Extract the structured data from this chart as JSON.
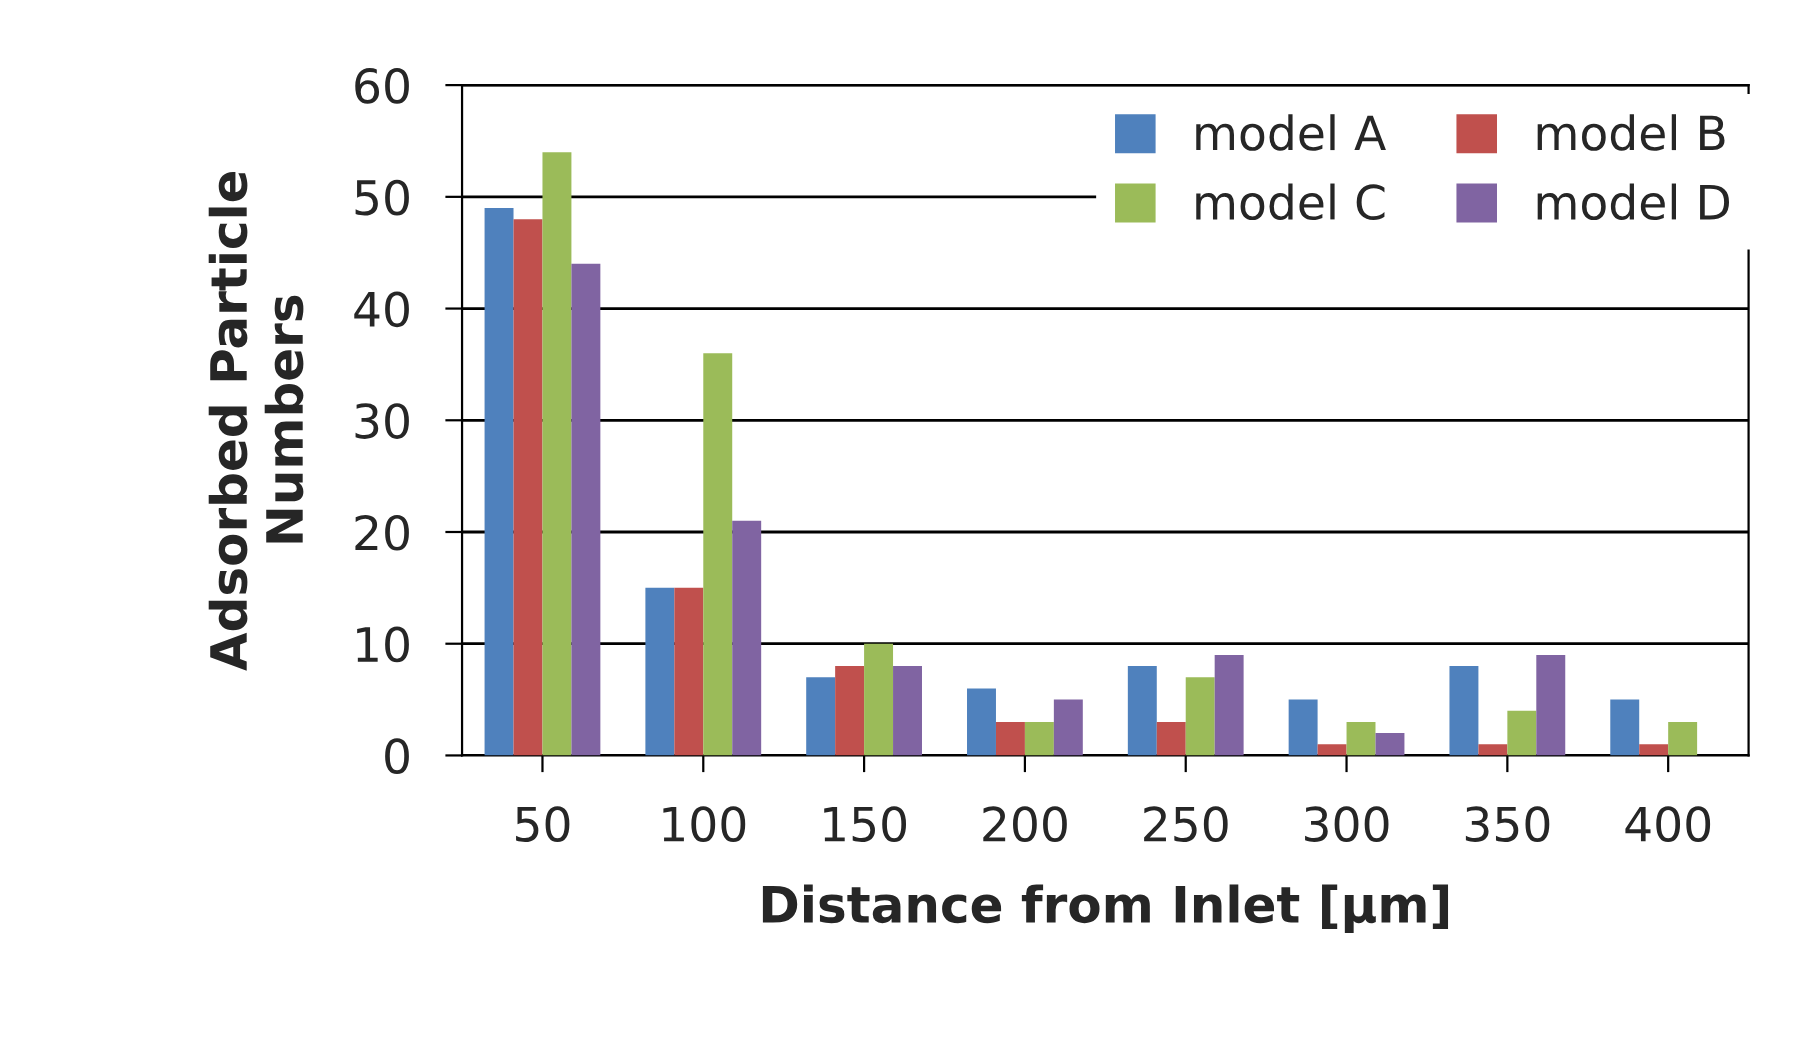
{
  "chart_data": {
    "type": "bar",
    "xlabel": "Distance from Inlet [µm]",
    "ylabel": "Adsorbed Particle\nNumbers",
    "categories": [
      "50",
      "100",
      "150",
      "200",
      "250",
      "300",
      "350",
      "400"
    ],
    "series": [
      {
        "name": "model A",
        "color": "#4f81bd",
        "values": [
          49,
          15,
          7,
          6,
          8,
          5,
          8,
          5
        ]
      },
      {
        "name": "model B",
        "color": "#c0504d",
        "values": [
          48,
          15,
          8,
          3,
          3,
          1,
          1,
          1
        ]
      },
      {
        "name": "model C",
        "color": "#9bbb59",
        "values": [
          54,
          36,
          10,
          3,
          7,
          3,
          4,
          3
        ]
      },
      {
        "name": "model D",
        "color": "#8064a2",
        "values": [
          44,
          21,
          8,
          5,
          9,
          2,
          9,
          null
        ]
      }
    ],
    "ylim": [
      0,
      60
    ],
    "yticks": [
      0,
      10,
      20,
      30,
      40,
      50,
      60
    ],
    "grid": "y",
    "legend": "top right"
  }
}
